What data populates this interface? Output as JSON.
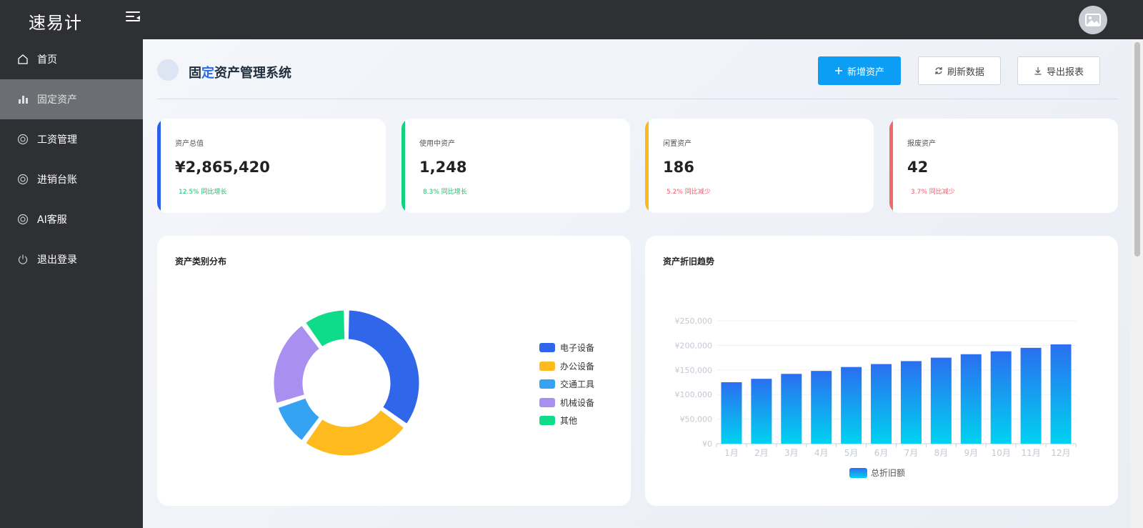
{
  "app": {
    "brand": "速易计"
  },
  "sidebar": {
    "items": [
      {
        "label": "首页",
        "icon": "home-icon"
      },
      {
        "label": "固定资产",
        "icon": "bar-chart-icon",
        "active": true
      },
      {
        "label": "工资管理",
        "icon": "lifebuoy-icon"
      },
      {
        "label": "进销台账",
        "icon": "lifebuoy-icon"
      },
      {
        "label": "AI客服",
        "icon": "lifebuoy-icon"
      },
      {
        "label": "退出登录",
        "icon": "power-icon"
      }
    ]
  },
  "header": {
    "title_prefix": "固",
    "title_highlight": "定",
    "title_suffix": "资产管理系统",
    "buttons": {
      "add": "新增资产",
      "refresh": "刷新数据",
      "export": "导出报表"
    }
  },
  "stats": [
    {
      "label": "资产总值",
      "value": "¥2,865,420",
      "trend": "12.5% 同比增长",
      "direction": "up",
      "color": "#2c5fe8"
    },
    {
      "label": "使用中资产",
      "value": "1,248",
      "trend": "8.3% 同比增长",
      "direction": "up",
      "color": "#0fd27a"
    },
    {
      "label": "闲置资产",
      "value": "186",
      "trend": "5.2% 同比减少",
      "direction": "down",
      "color": "#fbb81c"
    },
    {
      "label": "报废资产",
      "value": "42",
      "trend": "3.7% 同比减少",
      "direction": "down",
      "color": "#f06a6a"
    }
  ],
  "chart_data": [
    {
      "type": "pie",
      "title": "资产类别分布",
      "categories": [
        "电子设备",
        "办公设备",
        "交通工具",
        "机械设备",
        "其他"
      ],
      "values": [
        35,
        25,
        10,
        20,
        10
      ],
      "colors": [
        "#2f66ea",
        "#ffbb1e",
        "#36a3f2",
        "#a98ff0",
        "#0fdc88"
      ],
      "legend": "right"
    },
    {
      "type": "bar",
      "title": "资产折旧趋势",
      "categories": [
        "1月",
        "2月",
        "3月",
        "4月",
        "5月",
        "6月",
        "7月",
        "8月",
        "9月",
        "10月",
        "11月",
        "12月"
      ],
      "series": [
        {
          "name": "总折旧额",
          "values": [
            125000,
            132000,
            142000,
            148000,
            156000,
            162000,
            168000,
            175000,
            182000,
            188000,
            195000,
            202000
          ]
        }
      ],
      "yticks": [
        "¥0",
        "¥50,000",
        "¥100,000",
        "¥150,000",
        "¥200,000",
        "¥250,000"
      ],
      "ylim": [
        0,
        250000
      ],
      "grid": true,
      "legend": "bottom"
    }
  ]
}
